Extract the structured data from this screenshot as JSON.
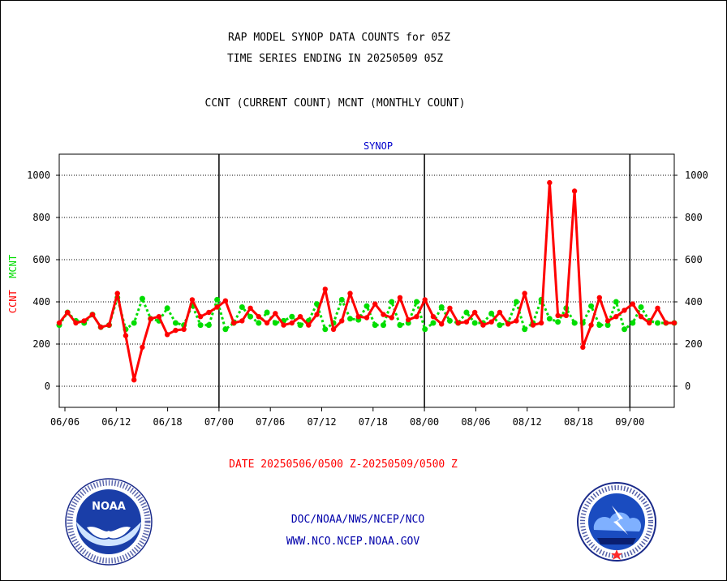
{
  "header": {
    "title1": "RAP MODEL SYNOP DATA COUNTS for 05Z",
    "title2": "TIME SERIES ENDING IN 20250509 05Z",
    "subtitle": "CCNT (CURRENT COUNT) MCNT (MONTHLY COUNT)"
  },
  "date_range": "DATE 20250506/0500 Z-20250509/0500 Z",
  "footer": {
    "org": "DOC/NOAA/NWS/NCEP/NCO",
    "url": "WWW.NCO.NCEP.NOAA.GOV"
  },
  "logos": {
    "noaa": "NOAA",
    "nws": "NATIONAL WEATHER SERVICE"
  },
  "colors": {
    "ccnt": "#ff0000",
    "mcnt": "#00dd00",
    "panel_title": "#0000cc",
    "footer": "#0000aa"
  },
  "chart_data": {
    "type": "line",
    "title": "SYNOP",
    "ylabel_left": [
      "CCNT",
      "MCNT"
    ],
    "ylim": [
      -100,
      1100
    ],
    "yticks": [
      0,
      200,
      400,
      600,
      800,
      1000
    ],
    "xticks": [
      "06/06",
      "06/12",
      "06/18",
      "07/00",
      "07/06",
      "07/12",
      "07/18",
      "08/00",
      "08/06",
      "08/12",
      "08/18",
      "09/00"
    ],
    "grid": true,
    "series": [
      {
        "name": "CCNT",
        "values": [
          300,
          350,
          300,
          310,
          340,
          280,
          290,
          440,
          240,
          30,
          185,
          320,
          330,
          245,
          265,
          270,
          410,
          330,
          350,
          375,
          405,
          300,
          310,
          370,
          330,
          300,
          345,
          290,
          300,
          330,
          290,
          340,
          460,
          270,
          310,
          440,
          330,
          325,
          390,
          340,
          325,
          420,
          315,
          330,
          410,
          330,
          295,
          370,
          300,
          305,
          350,
          290,
          305,
          350,
          295,
          310,
          440,
          290,
          300,
          965,
          335,
          335,
          925,
          185,
          290,
          420,
          310,
          330,
          360,
          390,
          330,
          300,
          370,
          300,
          300
        ]
      },
      {
        "name": "MCNT",
        "values": [
          290,
          350,
          310,
          300,
          340,
          280,
          290,
          420,
          270,
          300,
          415,
          320,
          310,
          370,
          300,
          290,
          385,
          290,
          290,
          410,
          270,
          300,
          375,
          330,
          300,
          350,
          300,
          310,
          330,
          290,
          310,
          390,
          270,
          300,
          410,
          320,
          315,
          380,
          290,
          290,
          400,
          290,
          300,
          400,
          270,
          300,
          375,
          310,
          300,
          350,
          300,
          300,
          345,
          290,
          300,
          400,
          270,
          300,
          410,
          320,
          305,
          370,
          300,
          300,
          380,
          290,
          290,
          400,
          270,
          300,
          375,
          310,
          300,
          300,
          300
        ]
      }
    ]
  }
}
